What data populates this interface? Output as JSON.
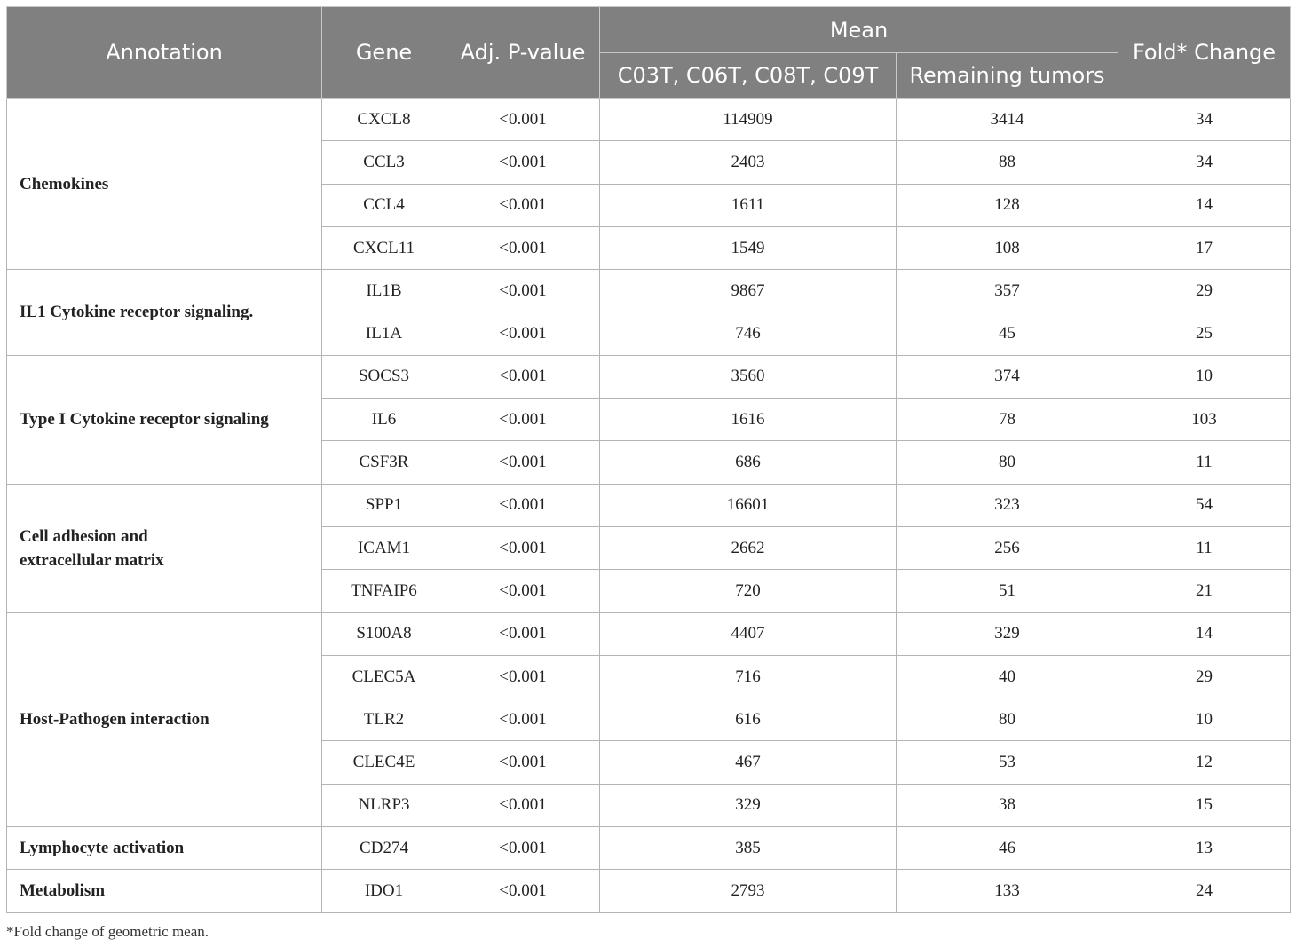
{
  "headers": {
    "annotation": "Annotation",
    "gene": "Gene",
    "adj_p": "Adj. P-value",
    "mean": "Mean",
    "group1": "C03T, C06T, C08T, C09T",
    "group2": "Remaining tumors",
    "fold": "Fold* Change"
  },
  "groups": [
    {
      "annotation": "Chemokines",
      "rows": [
        {
          "gene": "CXCL8",
          "p": "<0.001",
          "g1": "114909",
          "g2": "3414",
          "fold": "34"
        },
        {
          "gene": "CCL3",
          "p": "<0.001",
          "g1": "2403",
          "g2": "88",
          "fold": "34"
        },
        {
          "gene": "CCL4",
          "p": "<0.001",
          "g1": "1611",
          "g2": "128",
          "fold": "14"
        },
        {
          "gene": "CXCL11",
          "p": "<0.001",
          "g1": "1549",
          "g2": "108",
          "fold": "17"
        }
      ]
    },
    {
      "annotation": "IL1 Cytokine receptor signaling.",
      "rows": [
        {
          "gene": "IL1B",
          "p": "<0.001",
          "g1": "9867",
          "g2": "357",
          "fold": "29"
        },
        {
          "gene": "IL1A",
          "p": "<0.001",
          "g1": "746",
          "g2": "45",
          "fold": "25"
        }
      ]
    },
    {
      "annotation": "Type I Cytokine receptor signaling",
      "rows": [
        {
          "gene": "SOCS3",
          "p": "<0.001",
          "g1": "3560",
          "g2": "374",
          "fold": "10"
        },
        {
          "gene": "IL6",
          "p": "<0.001",
          "g1": "1616",
          "g2": "78",
          "fold": "103"
        },
        {
          "gene": "CSF3R",
          "p": "<0.001",
          "g1": "686",
          "g2": "80",
          "fold": "11"
        }
      ]
    },
    {
      "annotation": "Cell adhesion and extracellular matrix",
      "rows": [
        {
          "gene": "SPP1",
          "p": "<0.001",
          "g1": "16601",
          "g2": "323",
          "fold": "54"
        },
        {
          "gene": "ICAM1",
          "p": "<0.001",
          "g1": "2662",
          "g2": "256",
          "fold": "11"
        },
        {
          "gene": "TNFAIP6",
          "p": "<0.001",
          "g1": "720",
          "g2": "51",
          "fold": "21"
        }
      ]
    },
    {
      "annotation": "Host-Pathogen interaction",
      "rows": [
        {
          "gene": "S100A8",
          "p": "<0.001",
          "g1": "4407",
          "g2": "329",
          "fold": "14"
        },
        {
          "gene": "CLEC5A",
          "p": "<0.001",
          "g1": "716",
          "g2": "40",
          "fold": "29"
        },
        {
          "gene": "TLR2",
          "p": "<0.001",
          "g1": "616",
          "g2": "80",
          "fold": "10"
        },
        {
          "gene": "CLEC4E",
          "p": "<0.001",
          "g1": "467",
          "g2": "53",
          "fold": "12"
        },
        {
          "gene": "NLRP3",
          "p": "<0.001",
          "g1": "329",
          "g2": "38",
          "fold": "15"
        }
      ]
    },
    {
      "annotation": "Lymphocyte activation",
      "rows": [
        {
          "gene": "CD274",
          "p": "<0.001",
          "g1": "385",
          "g2": "46",
          "fold": "13"
        }
      ]
    },
    {
      "annotation": "Metabolism",
      "rows": [
        {
          "gene": "IDO1",
          "p": "<0.001",
          "g1": "2793",
          "g2": "133",
          "fold": "24"
        }
      ]
    }
  ],
  "footnote": "*Fold change of geometric mean."
}
